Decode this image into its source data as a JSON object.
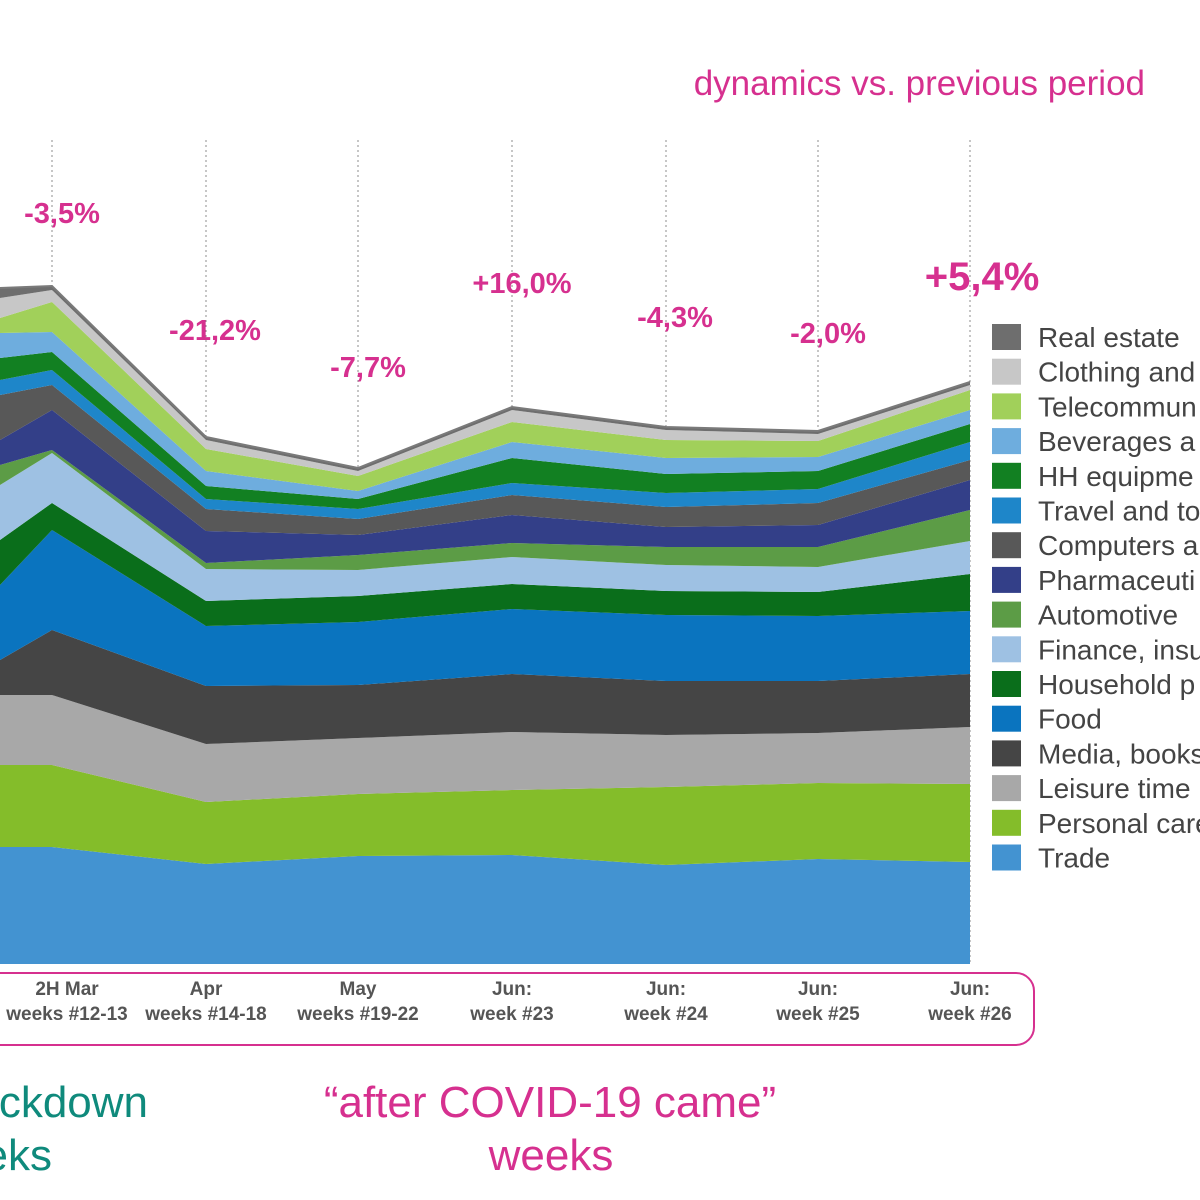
{
  "header": {
    "subtitle": "dynamics vs. previous period",
    "subtitle_color": "#d6308f"
  },
  "footer": {
    "left_line1": "ckdown",
    "left_line2": "eks",
    "left_color": "#0f8a7c",
    "right_line1": "“after COVID-19 came”",
    "right_line2": "weeks",
    "right_color": "#d6308f"
  },
  "chart_data": {
    "type": "area",
    "stacked": true,
    "grid": "vertical dotted lines",
    "legend_placement": "right",
    "categories": [
      {
        "line1": "2H Mar",
        "line2": "weeks #12-13"
      },
      {
        "line1": "Apr",
        "line2": "weeks #14-18"
      },
      {
        "line1": "May",
        "line2": "weeks #19-22"
      },
      {
        "line1": "Jun:",
        "line2": "week #23"
      },
      {
        "line1": "Jun:",
        "line2": "week #24"
      },
      {
        "line1": "Jun:",
        "line2": "week #25"
      },
      {
        "line1": "Jun:",
        "line2": "week #26"
      }
    ],
    "left_edge_values": [
      117,
      82,
      70,
      35,
      75,
      45,
      55,
      20,
      25,
      45,
      15,
      22,
      25,
      15,
      20,
      10
    ],
    "dynamics": [
      "-3,5%",
      "-21,2%",
      "-7,7%",
      "+16,0%",
      "-4,3%",
      "-2,0%",
      "+5,4%"
    ],
    "series": [
      {
        "name": "Trade",
        "color": "#4393d1",
        "values": [
          117,
          100,
          108,
          109,
          99,
          105,
          102
        ]
      },
      {
        "name": "Personal care",
        "color": "#84bd2a",
        "values": [
          82,
          62,
          62,
          65,
          78,
          76,
          78
        ]
      },
      {
        "name": "Leisure time",
        "color": "#a8a8a8",
        "values": [
          70,
          58,
          56,
          58,
          52,
          50,
          57
        ]
      },
      {
        "name": "Media, books",
        "color": "#454545",
        "values": [
          65,
          58,
          53,
          58,
          54,
          52,
          53
        ]
      },
      {
        "name": "Food",
        "color": "#0a74bf",
        "values": [
          100,
          60,
          63,
          65,
          66,
          65,
          63
        ]
      },
      {
        "name": "Household p",
        "color": "#0a6e1b",
        "values": [
          27,
          25,
          26,
          25,
          24,
          24,
          37
        ]
      },
      {
        "name": "Finance, insu",
        "color": "#9ec1e3",
        "values": [
          50,
          32,
          26,
          27,
          26,
          25,
          33
        ]
      },
      {
        "name": "Automotive",
        "color": "#5c9c46",
        "values": [
          3,
          6,
          15,
          14,
          18,
          20,
          31
        ]
      },
      {
        "name": "Pharmaceuti",
        "color": "#333f88",
        "values": [
          40,
          32,
          20,
          28,
          20,
          22,
          30
        ]
      },
      {
        "name": "Computers a",
        "color": "#585858",
        "values": [
          25,
          22,
          16,
          20,
          20,
          22,
          20
        ]
      },
      {
        "name": "Travel and to",
        "color": "#1e86c9",
        "values": [
          15,
          10,
          10,
          12,
          14,
          14,
          18
        ]
      },
      {
        "name": "HH equipme",
        "color": "#128022",
        "values": [
          18,
          13,
          10,
          25,
          19,
          18,
          18
        ]
      },
      {
        "name": "Beverages a",
        "color": "#6eadde",
        "values": [
          20,
          15,
          8,
          16,
          16,
          14,
          14
        ]
      },
      {
        "name": "Telecommun",
        "color": "#a1d05a",
        "values": [
          30,
          22,
          15,
          20,
          18,
          16,
          20
        ]
      },
      {
        "name": "Clothing and",
        "color": "#c7c7c7",
        "values": [
          12,
          9,
          5,
          12,
          10,
          7,
          5
        ]
      },
      {
        "name": "Real estate",
        "color": "#6e6e6e",
        "values": [
          4,
          3,
          3,
          3,
          3,
          3,
          3
        ]
      }
    ]
  }
}
